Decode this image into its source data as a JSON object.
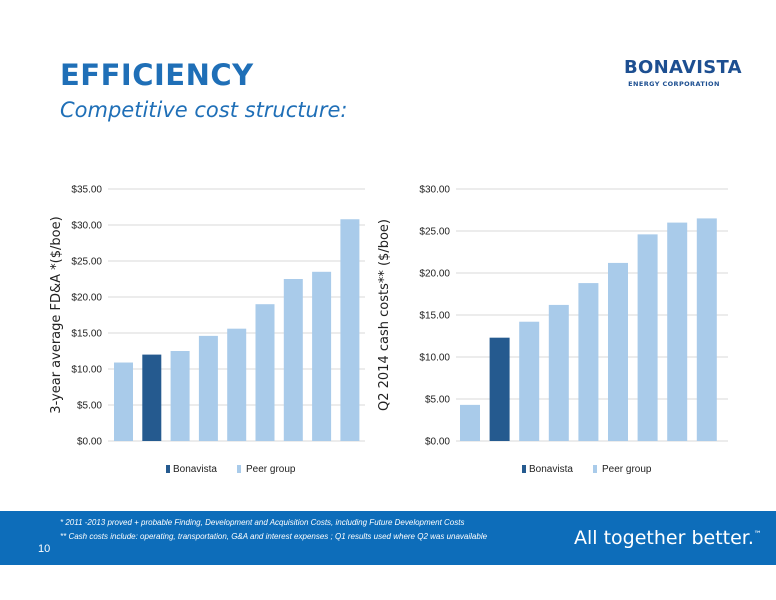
{
  "header": {
    "title": "EFFICIENCY",
    "subtitle": "Competitive cost structure:"
  },
  "logo": {
    "name": "BONAVISTA",
    "sub": "ENERGY CORPORATION"
  },
  "colors": {
    "bonavista": "#255a8f",
    "peer": "#a9cbea",
    "grid": "#d9d9d9",
    "brand": "#0d6dba"
  },
  "chart_data": [
    {
      "type": "bar",
      "ylabel": "3-year average  FD&A *($/boe)",
      "ylim": [
        0,
        35
      ],
      "yticks": [
        "$0.00",
        "$5.00",
        "$10.00",
        "$15.00",
        "$20.00",
        "$25.00",
        "$30.00",
        "$35.00"
      ],
      "values": [
        10.9,
        12.0,
        12.5,
        14.6,
        15.6,
        19.0,
        22.5,
        23.5,
        30.8
      ],
      "highlight_index": 1,
      "legend": [
        "Bonavista",
        "Peer group"
      ],
      "legend_position": "bottom",
      "grid": true
    },
    {
      "type": "bar",
      "ylabel": "Q2 2014 cash costs** ($/boe)",
      "ylim": [
        0,
        30
      ],
      "yticks": [
        "$0.00",
        "$5.00",
        "$10.00",
        "$15.00",
        "$20.00",
        "$25.00",
        "$30.00"
      ],
      "values": [
        4.3,
        12.3,
        14.2,
        16.2,
        18.8,
        21.2,
        24.6,
        26.0,
        26.5
      ],
      "highlight_index": 1,
      "legend": [
        "Bonavista",
        "Peer group"
      ],
      "legend_position": "bottom",
      "grid": true
    }
  ],
  "footer": {
    "note1": "*   2011 -2013 proved + probable Finding, Development and Acquisition Costs, including Future Development Costs",
    "note2": "** Cash costs include: operating, transportation, G&A and interest expenses ;  Q1 results used where Q2 was unavailable",
    "tagline": "All together better.",
    "tm": "™",
    "page": "10"
  }
}
